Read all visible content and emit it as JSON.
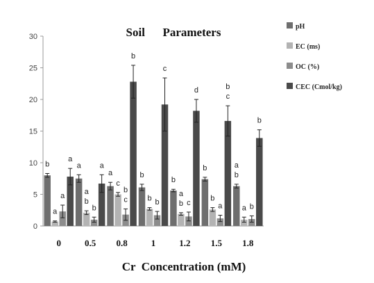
{
  "chart_data": {
    "type": "bar",
    "title": "Soil      Parameters",
    "xlabel": "Cr  Concentration (mM)",
    "ylabel": "",
    "ylim": [
      0,
      30
    ],
    "yticks": [
      0,
      5,
      10,
      15,
      20,
      25,
      30
    ],
    "grid": false,
    "legend_position": "right",
    "categories": [
      "0",
      "0.5",
      "0.8",
      "1",
      "1.2",
      "1.5",
      "1.8"
    ],
    "series": [
      {
        "name": "pH",
        "color": "#6e6e6e",
        "values": [
          8.0,
          7.5,
          6.3,
          6.1,
          5.6,
          7.4,
          6.3
        ],
        "errors": [
          0.3,
          0.6,
          0.6,
          0.5,
          0.2,
          0.3,
          0.3
        ],
        "letters": [
          [
            "b"
          ],
          [
            "a"
          ],
          [
            "a"
          ],
          [
            "b"
          ],
          [
            "b"
          ],
          [
            "b"
          ],
          [
            "a",
            "b"
          ]
        ]
      },
      {
        "name": "EC (ms)",
        "color": "#b3b3b3",
        "values": [
          0.7,
          2.1,
          5.0,
          2.7,
          1.9,
          2.6,
          1.0
        ],
        "errors": [
          0.1,
          0.3,
          0.3,
          0.2,
          0.2,
          0.3,
          0.4
        ],
        "letters": [
          [
            "a"
          ],
          [
            "a",
            "b"
          ],
          [
            "c"
          ],
          [
            "b"
          ],
          [
            "a",
            "b"
          ],
          [
            "b"
          ],
          [
            "a"
          ]
        ]
      },
      {
        "name": "OC (%)",
        "color": "#8c8c8c",
        "values": [
          2.3,
          1.0,
          1.8,
          1.7,
          1.5,
          1.2,
          1.1
        ],
        "errors": [
          1.0,
          0.4,
          0.9,
          0.6,
          0.7,
          0.5,
          0.5
        ],
        "letters": [
          [
            "a"
          ],
          [
            "b"
          ],
          [
            "b",
            "c"
          ],
          [
            "b"
          ],
          [
            "c"
          ],
          [
            "a"
          ],
          [
            "b"
          ]
        ]
      },
      {
        "name": "CEC (Cmol/kg)",
        "color": "#4a4a4a",
        "values": [
          7.8,
          6.7,
          22.8,
          19.2,
          18.2,
          16.6,
          13.9
        ],
        "errors": [
          1.3,
          1.4,
          2.6,
          4.2,
          1.8,
          2.4,
          1.3
        ],
        "letters": [
          [
            "a"
          ],
          [
            "a"
          ],
          [
            "b"
          ],
          [
            "c"
          ],
          [
            "d"
          ],
          [
            "b",
            "c"
          ],
          [
            "b"
          ]
        ]
      }
    ]
  }
}
